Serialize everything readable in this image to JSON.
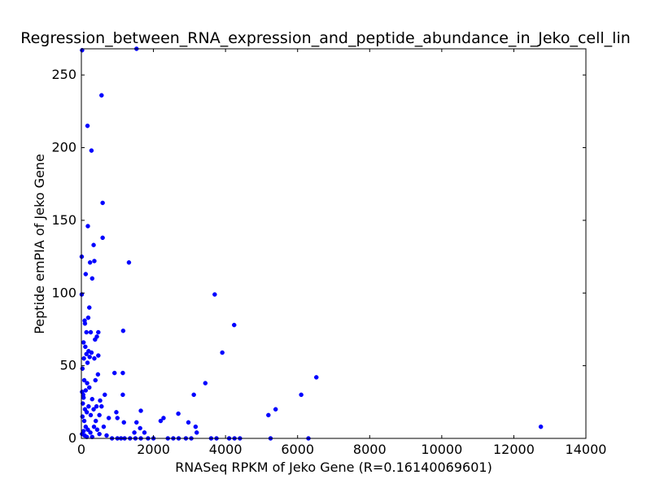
{
  "chart_data": {
    "type": "scatter",
    "title": "Regression_between_RNA_expression_and_peptide_abundance_in_Jeko_cell_lin",
    "xlabel": "RNASeq RPKM of Jeko Gene (R=0.16140069601)",
    "ylabel": "Peptide emPIA of Jeko Gene",
    "xlim": [
      0,
      14000
    ],
    "ylim": [
      0,
      268
    ],
    "x_ticks": [
      0,
      2000,
      4000,
      6000,
      8000,
      10000,
      12000,
      14000
    ],
    "y_ticks": [
      0,
      50,
      100,
      150,
      200,
      250
    ],
    "grid": false,
    "marker_color": "#0000ff",
    "series": [
      {
        "points": [
          [
            20,
            267
          ],
          [
            1530,
            268
          ],
          [
            560,
            236
          ],
          [
            170,
            215
          ],
          [
            280,
            198
          ],
          [
            590,
            162
          ],
          [
            180,
            146
          ],
          [
            590,
            138
          ],
          [
            340,
            133
          ],
          [
            10,
            125
          ],
          [
            360,
            122
          ],
          [
            240,
            121
          ],
          [
            1320,
            121
          ],
          [
            120,
            113
          ],
          [
            300,
            110
          ],
          [
            10,
            99
          ],
          [
            3700,
            99
          ],
          [
            220,
            90
          ],
          [
            190,
            83
          ],
          [
            90,
            81
          ],
          [
            100,
            79
          ],
          [
            4240,
            78
          ],
          [
            1160,
            74
          ],
          [
            140,
            73
          ],
          [
            260,
            73
          ],
          [
            470,
            73
          ],
          [
            430,
            70
          ],
          [
            380,
            68
          ],
          [
            60,
            66
          ],
          [
            110,
            63
          ],
          [
            200,
            60
          ],
          [
            280,
            59
          ],
          [
            140,
            58
          ],
          [
            3910,
            59
          ],
          [
            470,
            57
          ],
          [
            360,
            55
          ],
          [
            230,
            56
          ],
          [
            70,
            55
          ],
          [
            170,
            52
          ],
          [
            30,
            48
          ],
          [
            920,
            45
          ],
          [
            1150,
            45
          ],
          [
            6520,
            42
          ],
          [
            460,
            44
          ],
          [
            390,
            40
          ],
          [
            3440,
            38
          ],
          [
            80,
            40
          ],
          [
            160,
            38
          ],
          [
            220,
            35
          ],
          [
            20,
            32
          ],
          [
            50,
            30
          ],
          [
            120,
            33
          ],
          [
            650,
            30
          ],
          [
            1150,
            30
          ],
          [
            3120,
            30
          ],
          [
            6100,
            30
          ],
          [
            300,
            27
          ],
          [
            520,
            26
          ],
          [
            560,
            22
          ],
          [
            420,
            22
          ],
          [
            5390,
            20
          ],
          [
            1650,
            19
          ],
          [
            970,
            18
          ],
          [
            2690,
            17
          ],
          [
            5190,
            16
          ],
          [
            500,
            16
          ],
          [
            760,
            14
          ],
          [
            2280,
            14
          ],
          [
            1000,
            14
          ],
          [
            2200,
            12
          ],
          [
            2970,
            11
          ],
          [
            1530,
            11
          ],
          [
            1180,
            11
          ],
          [
            3170,
            8
          ],
          [
            12750,
            8
          ],
          [
            1630,
            7
          ],
          [
            620,
            8
          ],
          [
            1750,
            4
          ],
          [
            1470,
            4
          ],
          [
            3200,
            4
          ],
          [
            60,
            28
          ],
          [
            40,
            24
          ],
          [
            100,
            20
          ],
          [
            150,
            18
          ],
          [
            30,
            15
          ],
          [
            80,
            12
          ],
          [
            200,
            22
          ],
          [
            260,
            16
          ],
          [
            340,
            20
          ],
          [
            400,
            12
          ],
          [
            120,
            8
          ],
          [
            180,
            6
          ],
          [
            60,
            5
          ],
          [
            20,
            3
          ],
          [
            250,
            4
          ],
          [
            350,
            8
          ],
          [
            440,
            6
          ],
          [
            500,
            3
          ],
          [
            90,
            2
          ],
          [
            150,
            1
          ],
          [
            300,
            1
          ],
          [
            700,
            2
          ],
          [
            850,
            0
          ],
          [
            1000,
            0
          ],
          [
            1100,
            0
          ],
          [
            1200,
            0
          ],
          [
            1350,
            0
          ],
          [
            1500,
            0
          ],
          [
            1650,
            0
          ],
          [
            1850,
            0
          ],
          [
            2000,
            0
          ],
          [
            2400,
            0
          ],
          [
            2550,
            0
          ],
          [
            2700,
            0
          ],
          [
            2900,
            0
          ],
          [
            3050,
            0
          ],
          [
            3600,
            0
          ],
          [
            3750,
            0
          ],
          [
            4100,
            0
          ],
          [
            4250,
            0
          ],
          [
            4400,
            0
          ],
          [
            5250,
            0
          ],
          [
            6300,
            0
          ]
        ]
      }
    ]
  }
}
